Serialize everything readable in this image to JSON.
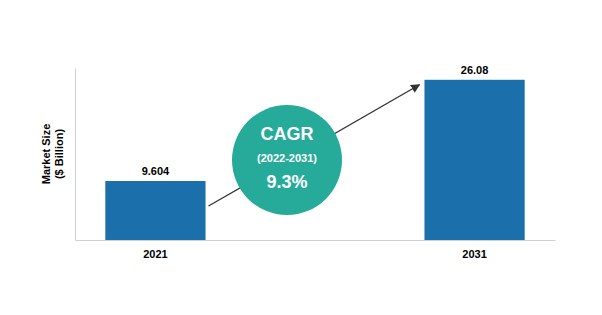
{
  "chart_data": {
    "type": "bar",
    "ylabel": [
      "Market Size",
      "($ Billion)"
    ],
    "categories": [
      "2021",
      "2031"
    ],
    "values": [
      9.604,
      26.08
    ],
    "color": "#1b6faa",
    "ylim": [
      0,
      28
    ],
    "yticks": [],
    "tick_labels": "x",
    "data_labels": true,
    "annotations": [
      "CAGR",
      "(2022-2031)",
      "9.3%"
    ]
  }
}
